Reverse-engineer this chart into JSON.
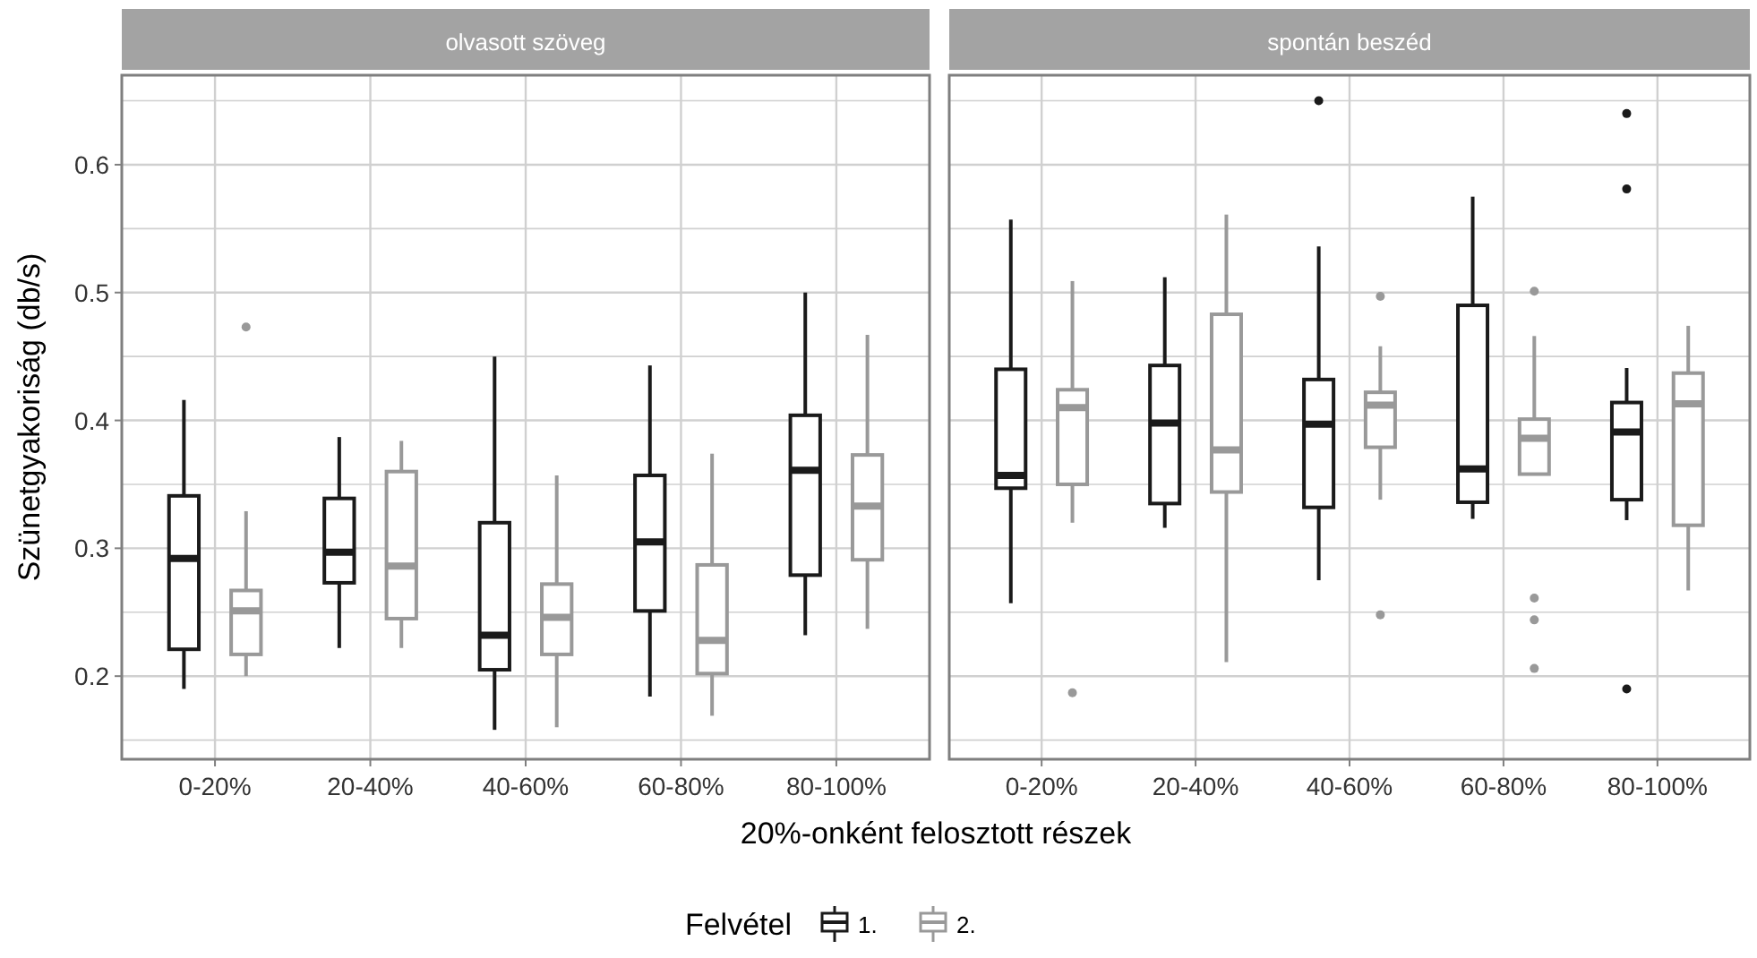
{
  "chart_data": [
    {
      "type": "box",
      "title": "olvasott szöveg",
      "xlabel": "20%-onként felosztott részek",
      "ylabel": "Szünetgyakoriság (db/s)",
      "legend_title": "Felvétel",
      "legend": "bottom",
      "grid": true,
      "categories": [
        "0-20%",
        "20-40%",
        "40-60%",
        "60-80%",
        "80-100%"
      ],
      "ylim": [
        0.135,
        0.67
      ],
      "yticks": [
        {
          "value": 0.15,
          "label": null
        },
        0.2,
        {
          "value": 0.25,
          "label": null
        },
        0.3,
        {
          "value": 0.35,
          "label": null
        },
        0.4,
        {
          "value": 0.45,
          "label": null
        },
        0.5,
        {
          "value": 0.55,
          "label": null
        },
        0.6,
        {
          "value": 0.65,
          "label": null
        }
      ],
      "series": [
        {
          "name": "1.",
          "color": "#1a1a1a",
          "boxes": [
            {
              "low": 0.19,
              "q1": 0.221,
              "median": 0.292,
              "q3": 0.341,
              "high": 0.416
            },
            {
              "low": 0.222,
              "q1": 0.273,
              "median": 0.297,
              "q3": 0.339,
              "high": 0.387
            },
            {
              "low": 0.158,
              "q1": 0.205,
              "median": 0.232,
              "q3": 0.32,
              "high": 0.45
            },
            {
              "low": 0.184,
              "q1": 0.251,
              "median": 0.305,
              "q3": 0.357,
              "high": 0.443
            },
            {
              "low": 0.232,
              "q1": 0.279,
              "median": 0.361,
              "q3": 0.404,
              "high": 0.5
            }
          ]
        },
        {
          "name": "2.",
          "color": "#999999",
          "boxes": [
            {
              "low": 0.2,
              "q1": 0.217,
              "median": 0.251,
              "q3": 0.267,
              "high": 0.329,
              "outliers": [
                0.473
              ]
            },
            {
              "low": 0.222,
              "q1": 0.245,
              "median": 0.286,
              "q3": 0.36,
              "high": 0.384
            },
            {
              "low": 0.16,
              "q1": 0.217,
              "median": 0.246,
              "q3": 0.272,
              "high": 0.357
            },
            {
              "low": 0.169,
              "q1": 0.202,
              "median": 0.228,
              "q3": 0.287,
              "high": 0.374
            },
            {
              "low": 0.237,
              "q1": 0.291,
              "median": 0.333,
              "q3": 0.373,
              "high": 0.467
            }
          ]
        }
      ]
    },
    {
      "type": "box",
      "title": "spontán beszéd",
      "tick_labels": "x",
      "grid": true,
      "categories": [
        "0-20%",
        "20-40%",
        "40-60%",
        "60-80%",
        "80-100%"
      ],
      "ylim": [
        0.135,
        0.67
      ],
      "yticks": [
        {
          "value": 0.15,
          "label": null
        },
        0.2,
        {
          "value": 0.25,
          "label": null
        },
        0.3,
        {
          "value": 0.35,
          "label": null
        },
        0.4,
        {
          "value": 0.45,
          "label": null
        },
        0.5,
        {
          "value": 0.55,
          "label": null
        },
        0.6,
        {
          "value": 0.65,
          "label": null
        }
      ],
      "series": [
        {
          "color": "#1a1a1a",
          "boxes": [
            {
              "low": 0.257,
              "q1": 0.347,
              "median": 0.357,
              "q3": 0.44,
              "high": 0.557
            },
            {
              "low": 0.316,
              "q1": 0.335,
              "median": 0.398,
              "q3": 0.443,
              "high": 0.512
            },
            {
              "low": 0.275,
              "q1": 0.332,
              "median": 0.397,
              "q3": 0.432,
              "high": 0.536,
              "outliers": [
                0.65
              ]
            },
            {
              "low": 0.323,
              "q1": 0.336,
              "median": 0.362,
              "q3": 0.49,
              "high": 0.575
            },
            {
              "low": 0.322,
              "q1": 0.338,
              "median": 0.391,
              "q3": 0.414,
              "high": 0.441,
              "outliers": [
                0.64,
                0.581,
                0.19
              ]
            }
          ]
        },
        {
          "color": "#999999",
          "boxes": [
            {
              "low": 0.32,
              "q1": 0.35,
              "median": 0.41,
              "q3": 0.424,
              "high": 0.509,
              "outliers": [
                0.187
              ]
            },
            {
              "low": 0.211,
              "q1": 0.344,
              "median": 0.377,
              "q3": 0.483,
              "high": 0.561
            },
            {
              "low": 0.338,
              "q1": 0.379,
              "median": 0.412,
              "q3": 0.422,
              "high": 0.458,
              "outliers": [
                0.497,
                0.248
              ]
            },
            {
              "low": 0.357,
              "q1": 0.358,
              "median": 0.386,
              "q3": 0.401,
              "high": 0.466,
              "outliers": [
                0.501,
                0.261,
                0.244,
                0.206
              ]
            },
            {
              "low": 0.267,
              "q1": 0.318,
              "median": 0.413,
              "q3": 0.437,
              "high": 0.474
            }
          ]
        }
      ]
    }
  ]
}
